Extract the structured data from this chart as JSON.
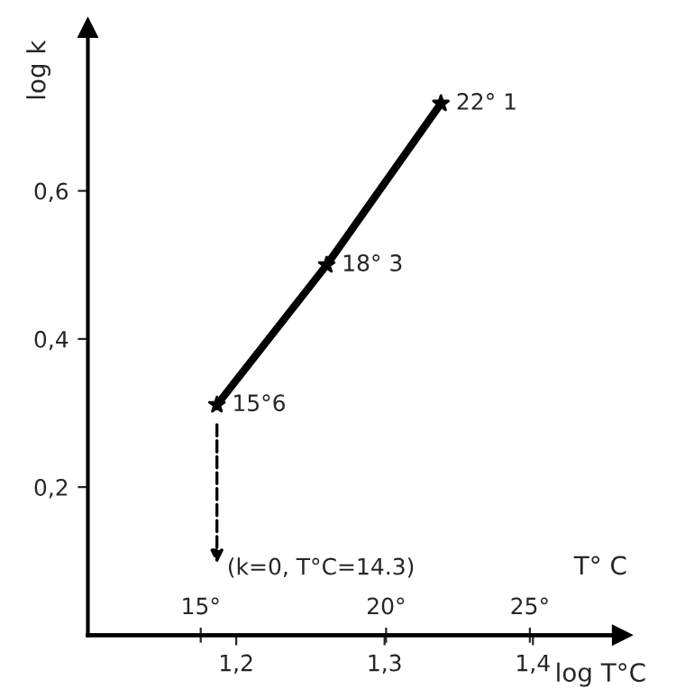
{
  "chart_data": {
    "type": "line",
    "xlabel": "log T°C",
    "ylabel": "log k",
    "x2label": "T° C",
    "series": [
      {
        "color": "#000000",
        "x": [
          1.187,
          1.261,
          1.338
        ],
        "values": [
          0.311,
          0.5,
          0.718
        ]
      }
    ],
    "marker": "star",
    "xlim": [
      1.1,
      1.46
    ],
    "ylim": [
      0,
      0.82
    ],
    "xticks": [
      {
        "value": 1.2,
        "label": "1,2"
      },
      {
        "value": 1.3,
        "label": "1,3"
      },
      {
        "value": 1.4,
        "label": "1,4"
      }
    ],
    "yticks": [
      {
        "value": 0.2,
        "label": "0,2"
      },
      {
        "value": 0.4,
        "label": "0,4"
      },
      {
        "value": 0.6,
        "label": "0,6"
      }
    ],
    "log": "x2",
    "x2lim": [
      12.59,
      28.84
    ],
    "x2ticks": [
      {
        "value": 15,
        "label": "15°"
      },
      {
        "value": 20,
        "label": "20°"
      },
      {
        "value": 25,
        "label": "25°"
      }
    ],
    "annotations": [
      {
        "text": "15°6",
        "x": 1.187,
        "y": 0.311
      },
      {
        "text": "18° 3",
        "x": 1.261,
        "y": 0.5
      },
      {
        "text": "22° 1",
        "x": 1.338,
        "y": 0.718
      },
      "(k=0, T°C=14.3)"
    ],
    "grid": false
  }
}
